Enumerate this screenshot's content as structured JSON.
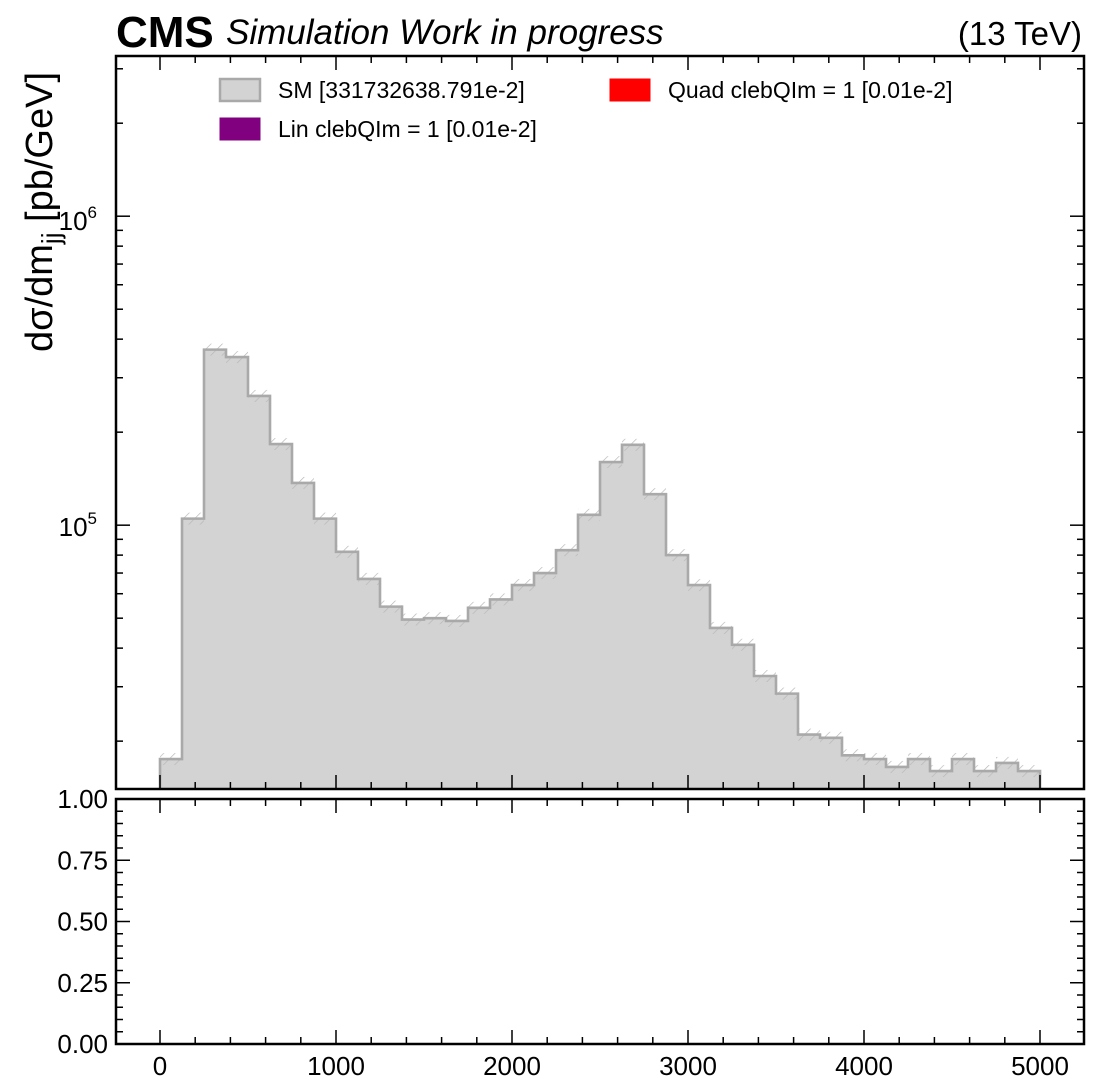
{
  "header": {
    "experiment": "CMS",
    "status": "Simulation Work in progress",
    "energy": "(13 TeV)"
  },
  "colors": {
    "sm_fill": "#d3d3d3",
    "sm_edge": "#a9a9a9",
    "lin": "#800080",
    "quad": "#ff0000"
  },
  "chart_data": [
    {
      "type": "histogram",
      "yscale": "log",
      "ylabel_main": "dσ/dm",
      "ylabel_sub": "jj",
      "ylabel_unit": " [pb/GeV]",
      "xlim": [
        -250,
        5250
      ],
      "ylim": [
        14000,
        3300000
      ],
      "ytick_labels": [
        {
          "base": "10",
          "exp": "5",
          "value": 100000
        },
        {
          "base": "10",
          "exp": "6",
          "value": 1000000
        }
      ],
      "bin_edges": [
        0,
        125,
        250,
        375,
        500,
        625,
        750,
        875,
        1000,
        1125,
        1250,
        1375,
        1500,
        1625,
        1750,
        1875,
        2000,
        2125,
        2250,
        2375,
        2500,
        2625,
        2750,
        2875,
        3000,
        3125,
        3250,
        3375,
        3500,
        3625,
        3750,
        3875,
        4000,
        4125,
        4250,
        4375,
        4500,
        4625,
        4750,
        4875,
        5000
      ],
      "series": [
        {
          "name": "SM [331732638.791e-2]",
          "values": [
            17500,
            105000,
            370000,
            350000,
            262000,
            183000,
            137000,
            105000,
            82000,
            67000,
            54500,
            49500,
            50000,
            49000,
            54000,
            57500,
            64000,
            70000,
            83000,
            108000,
            160000,
            182000,
            126000,
            80000,
            64000,
            46500,
            41000,
            32500,
            28500,
            21000,
            20500,
            18000,
            17500,
            16500,
            17500,
            16000,
            17500,
            16000,
            17000,
            16000
          ]
        },
        {
          "name": "Lin clebQIm = 1 [0.01e-2]",
          "values": []
        },
        {
          "name": "Quad clebQIm = 1 [0.01e-2]",
          "values": []
        }
      ],
      "legend": {
        "location": "top",
        "entries": [
          {
            "label": "SM [331732638.791e-2]",
            "color": "#d3d3d3",
            "edge": "#a9a9a9"
          },
          {
            "label": "Lin clebQIm = 1 [0.01e-2]",
            "color": "#800080",
            "edge": "#800080"
          },
          {
            "label": "Quad clebQIm = 1 [0.01e-2]",
            "color": "#ff0000",
            "edge": "#ff0000"
          }
        ]
      }
    },
    {
      "type": "line",
      "xlim": [
        -250,
        5250
      ],
      "ylim": [
        0,
        1
      ],
      "yticks": [
        "0.00",
        "0.25",
        "0.50",
        "0.75",
        "1.00"
      ],
      "xticks": [
        "0",
        "1000",
        "2000",
        "3000",
        "4000",
        "5000"
      ],
      "series": []
    }
  ]
}
